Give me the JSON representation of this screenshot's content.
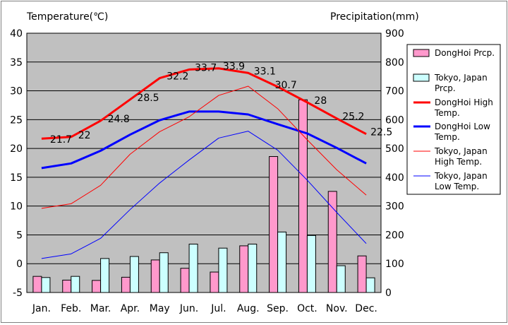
{
  "chart_data": {
    "type": "bar+line",
    "left_axis": {
      "title": "Temperature(℃)",
      "min": -5,
      "max": 40,
      "step": 5,
      "ticks": [
        "-5",
        "0",
        "5",
        "10",
        "15",
        "20",
        "25",
        "30",
        "35",
        "40"
      ]
    },
    "right_axis": {
      "title": "Precipitation(mm)",
      "min": 0,
      "max": 900,
      "step": 100,
      "ticks": [
        "0",
        "100",
        "200",
        "300",
        "400",
        "500",
        "600",
        "700",
        "800",
        "900"
      ]
    },
    "categories": [
      "Jan.",
      "Feb.",
      "Mar.",
      "Apr.",
      "May",
      "Jun.",
      "Jul.",
      "Aug.",
      "Sep.",
      "Oct.",
      "Nov.",
      "Dec."
    ],
    "grid": true,
    "plot_background": "#c0c0c0",
    "legend_position": "right",
    "bar_series": [
      {
        "name": "DongHoi Prcp.",
        "color": "#ff99cc",
        "values": [
          56,
          43,
          42,
          53,
          113,
          84,
          71,
          162,
          472,
          669,
          351,
          127
        ]
      },
      {
        "name": "Tokyo, Japan Prcp.",
        "color": "#ccffff",
        "values": [
          52,
          56,
          118,
          125,
          138,
          168,
          154,
          168,
          210,
          198,
          93,
          51
        ]
      }
    ],
    "line_series": [
      {
        "name": "DongHoi High Temp.",
        "color": "#ff0000",
        "width": 3,
        "values": [
          21.7,
          22,
          24.8,
          28.5,
          32.2,
          33.7,
          33.9,
          33.1,
          30.7,
          28,
          25.2,
          22.5
        ],
        "labels": [
          "21.7",
          "22",
          "24.8",
          "28.5",
          "32.2",
          "33.7",
          "33.9",
          "33.1",
          "30.7",
          "28",
          "25.2",
          "22.5"
        ]
      },
      {
        "name": "DongHoi Low Temp.",
        "color": "#0000ff",
        "width": 3,
        "values": [
          16.6,
          17.4,
          19.6,
          22.4,
          24.9,
          26.4,
          26.4,
          25.9,
          24.2,
          22.6,
          20.1,
          17.4
        ]
      },
      {
        "name": "Tokyo, Japan High Temp.",
        "color": "#ff0000",
        "width": 1,
        "values": [
          9.6,
          10.4,
          13.6,
          19.0,
          22.9,
          25.5,
          29.2,
          30.8,
          26.9,
          21.5,
          16.3,
          11.9
        ]
      },
      {
        "name": "Tokyo, Japan Low Temp.",
        "color": "#0000ff",
        "width": 1,
        "values": [
          0.9,
          1.7,
          4.4,
          9.4,
          14.0,
          18.0,
          21.8,
          23.0,
          19.7,
          14.5,
          8.9,
          3.5
        ]
      }
    ]
  }
}
